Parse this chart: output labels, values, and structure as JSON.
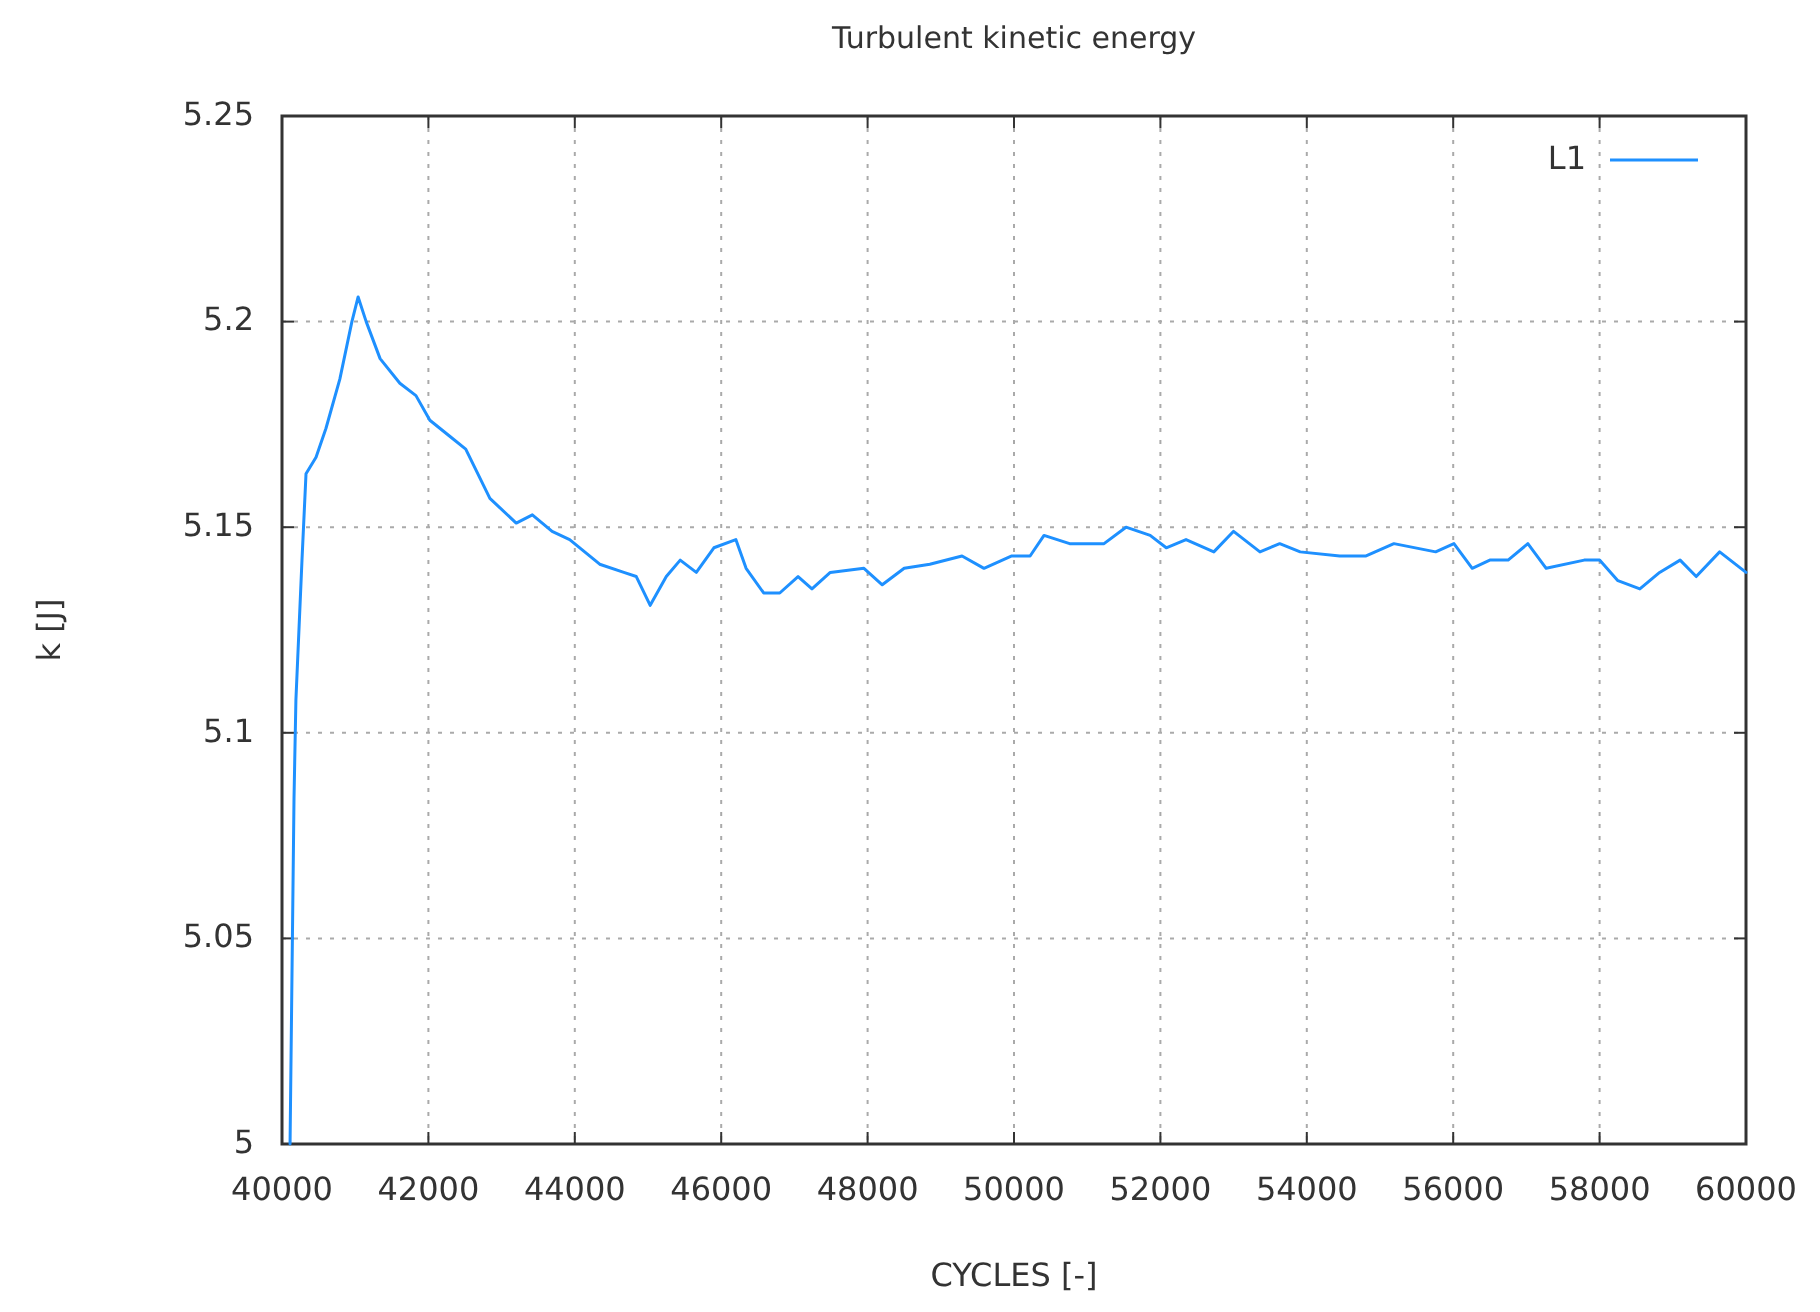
{
  "chart_data": {
    "type": "line",
    "title": "Turbulent kinetic energy",
    "xlabel": "CYCLES [-]",
    "ylabel": "k [J]",
    "xlim": [
      40000,
      60000
    ],
    "xticks": [
      40000,
      42000,
      44000,
      46000,
      48000,
      50000,
      52000,
      54000,
      56000,
      58000,
      60000
    ],
    "ylim": [
      5,
      5.25
    ],
    "yticks": [
      5,
      5.05,
      5.1,
      5.15,
      5.2,
      5.25
    ],
    "grid": true,
    "legend": "top right",
    "line_style": "solid",
    "marker": "none",
    "series": [
      {
        "name": "L1",
        "color": "#1e90ff",
        "x": [
          40110,
          40164,
          40190,
          40273,
          40328,
          40465,
          40600,
          40790,
          40955,
          41040,
          41150,
          41340,
          41610,
          41830,
          42020,
          42300,
          42510,
          42840,
          43200,
          43420,
          43690,
          43930,
          44340,
          44670,
          44840,
          45030,
          45250,
          45440,
          45660,
          45900,
          46200,
          46340,
          46580,
          46800,
          47050,
          47240,
          47490,
          47950,
          48200,
          48500,
          48850,
          49290,
          49590,
          49970,
          50220,
          50410,
          50760,
          51230,
          51530,
          51860,
          52080,
          52350,
          52730,
          53000,
          53360,
          53630,
          53910,
          54450,
          54810,
          55190,
          55760,
          56010,
          56260,
          56500,
          56750,
          57020,
          57270,
          57790,
          58000,
          58250,
          58550,
          58820,
          59100,
          59320,
          59640,
          60000
        ],
        "values": [
          5.0,
          5.084,
          5.108,
          5.142,
          5.163,
          5.167,
          5.174,
          5.186,
          5.2,
          5.206,
          5.2,
          5.191,
          5.185,
          5.182,
          5.176,
          5.172,
          5.169,
          5.157,
          5.151,
          5.153,
          5.149,
          5.147,
          5.141,
          5.139,
          5.138,
          5.131,
          5.138,
          5.142,
          5.139,
          5.145,
          5.147,
          5.14,
          5.134,
          5.134,
          5.138,
          5.135,
          5.139,
          5.14,
          5.136,
          5.14,
          5.141,
          5.143,
          5.14,
          5.143,
          5.143,
          5.148,
          5.146,
          5.146,
          5.15,
          5.148,
          5.145,
          5.147,
          5.144,
          5.149,
          5.144,
          5.146,
          5.144,
          5.143,
          5.143,
          5.146,
          5.144,
          5.146,
          5.14,
          5.142,
          5.142,
          5.146,
          5.14,
          5.142,
          5.142,
          5.137,
          5.135,
          5.139,
          5.142,
          5.138,
          5.144,
          5.139
        ]
      }
    ]
  }
}
